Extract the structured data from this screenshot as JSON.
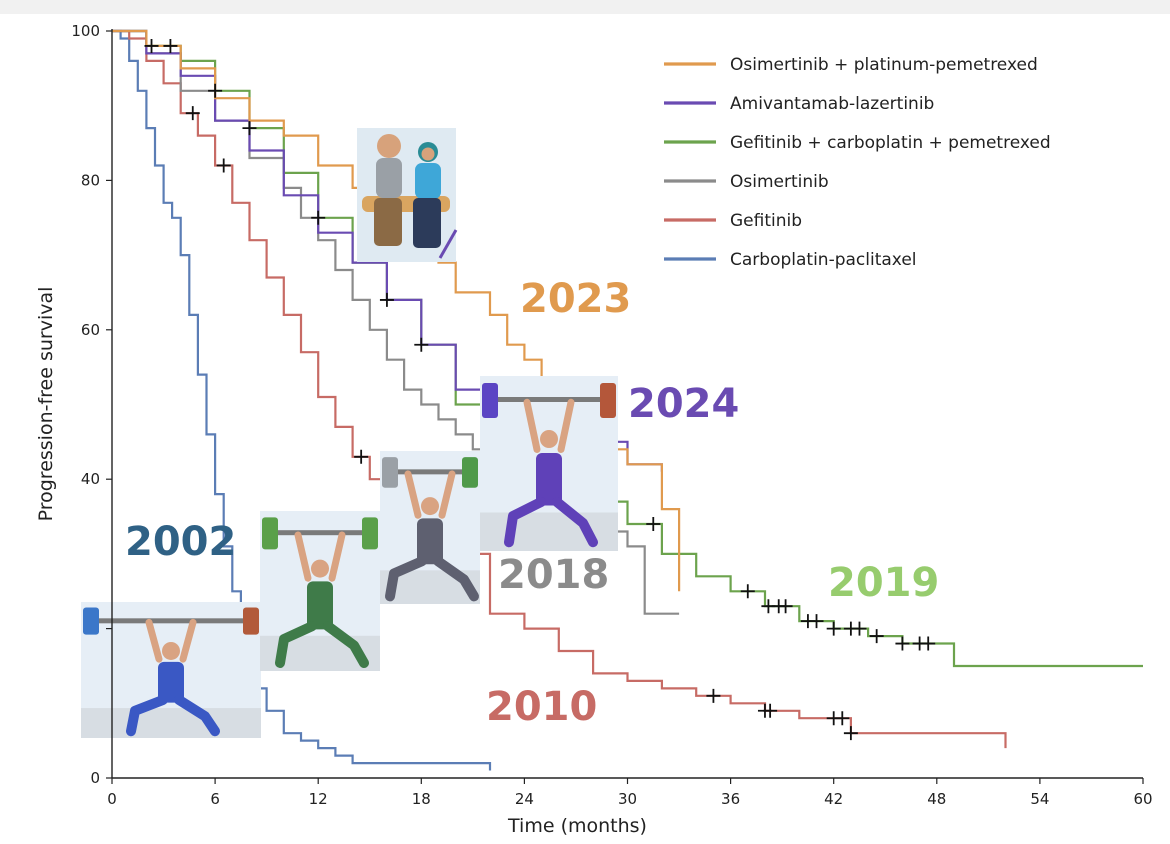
{
  "chart_data": {
    "type": "line",
    "subtype": "kaplan-meier",
    "title": "",
    "xlabel": "Time (months)",
    "ylabel": "Progression-free survival",
    "xlim": [
      0,
      60
    ],
    "ylim": [
      0,
      100
    ],
    "xticks": [
      0,
      6,
      12,
      18,
      24,
      30,
      36,
      42,
      48,
      54,
      60
    ],
    "yticks": [
      0,
      20,
      40,
      60,
      80,
      100
    ],
    "ytick_labels_shown": [
      "0",
      "40",
      "60",
      "80",
      "100"
    ],
    "grid": false,
    "legend_position": "top-right",
    "series": [
      {
        "name": "Carboplatin-paclitaxel",
        "year": "2002",
        "color": "#5b7db5",
        "x": [
          0,
          0.5,
          1,
          1.5,
          2,
          2.5,
          3,
          3.5,
          4,
          4.5,
          5,
          5.5,
          6,
          6.5,
          7,
          7.5,
          8,
          8.5,
          9,
          10,
          11,
          12,
          13,
          14,
          16,
          18,
          20,
          22
        ],
        "y": [
          100,
          99,
          96,
          92,
          87,
          82,
          77,
          75,
          70,
          62,
          54,
          46,
          38,
          31,
          25,
          20,
          16,
          12,
          9,
          6,
          5,
          4,
          3,
          2,
          2,
          2,
          2,
          1
        ]
      },
      {
        "name": "Gefitinib",
        "year": "2010",
        "color": "#c76b65",
        "x": [
          0,
          1,
          2,
          3,
          4,
          5,
          6,
          7,
          8,
          9,
          10,
          11,
          12,
          13,
          14,
          15,
          16,
          18,
          20,
          22,
          24,
          26,
          28,
          30,
          32,
          34,
          36,
          38,
          40,
          42,
          43,
          46,
          50,
          52
        ],
        "y": [
          100,
          99,
          96,
          93,
          89,
          86,
          82,
          77,
          72,
          67,
          62,
          57,
          51,
          47,
          43,
          40,
          38,
          35,
          30,
          22,
          20,
          17,
          14,
          13,
          12,
          11,
          10,
          9,
          8,
          8,
          6,
          6,
          6,
          4
        ]
      },
      {
        "name": "Osimertinib",
        "year": "2018",
        "color": "#8b8b8b",
        "x": [
          0,
          2,
          4,
          6,
          8,
          10,
          11,
          12,
          13,
          14,
          15,
          16,
          17,
          18,
          19,
          20,
          21,
          22,
          24,
          26,
          28,
          29,
          30,
          31,
          33
        ],
        "y": [
          100,
          97,
          92,
          88,
          83,
          79,
          75,
          72,
          68,
          64,
          60,
          56,
          52,
          50,
          48,
          46,
          44,
          43,
          40,
          37,
          35,
          33,
          31,
          22,
          22
        ]
      },
      {
        "name": "Gefitinib + carboplatin + pemetrexed",
        "year": "2019",
        "color": "#6ca34d",
        "x": [
          0,
          2,
          4,
          6,
          8,
          10,
          12,
          14,
          16,
          18,
          20,
          22,
          24,
          26,
          28,
          30,
          32,
          34,
          36,
          38,
          40,
          42,
          44,
          46,
          48,
          49,
          50,
          55,
          60
        ],
        "y": [
          100,
          98,
          96,
          92,
          87,
          81,
          75,
          69,
          64,
          58,
          50,
          47,
          43,
          40,
          37,
          34,
          30,
          27,
          25,
          23,
          21,
          20,
          19,
          18,
          18,
          15,
          15,
          15,
          15
        ]
      },
      {
        "name": "Amivantamab-lazertinib",
        "year": "2024",
        "color": "#6a4bb2",
        "x": [
          0,
          2,
          4,
          6,
          8,
          10,
          12,
          14,
          16,
          18,
          20,
          22,
          24,
          26,
          28,
          30,
          32
        ],
        "y": [
          100,
          97,
          94,
          88,
          84,
          78,
          73,
          69,
          64,
          58,
          52,
          50,
          48,
          46,
          45,
          42,
          41
        ]
      },
      {
        "name": "Osimertinib + platinum-pemetrexed",
        "year": "2023",
        "color": "#e09a4e",
        "x": [
          0,
          2,
          4,
          6,
          8,
          10,
          12,
          14,
          16,
          18,
          19,
          20,
          22,
          23,
          24,
          25,
          26,
          27,
          28,
          30,
          32,
          33
        ],
        "y": [
          100,
          98,
          95,
          91,
          88,
          86,
          82,
          79,
          76,
          72,
          69,
          65,
          62,
          58,
          56,
          53,
          50,
          47,
          44,
          42,
          36,
          25
        ]
      }
    ],
    "annotations": [
      {
        "text": "2002",
        "color": "#2f6185"
      },
      {
        "text": "2010",
        "color": "#c76b65"
      },
      {
        "text": "2018",
        "color": "#8b8b8b"
      },
      {
        "text": "2019",
        "color": "#97cc6e"
      },
      {
        "text": "2023",
        "color": "#e09a4e"
      },
      {
        "text": "2024",
        "color": "#6a4bb2"
      }
    ]
  },
  "illustrations": [
    {
      "name": "weightlifter-blue",
      "year": "2002"
    },
    {
      "name": "weightlifter-green",
      "year": "2010"
    },
    {
      "name": "weightlifter-gray",
      "year": "2018"
    },
    {
      "name": "weightlifter-purple",
      "year": "2024"
    },
    {
      "name": "seated-couple",
      "year": "2023"
    }
  ]
}
